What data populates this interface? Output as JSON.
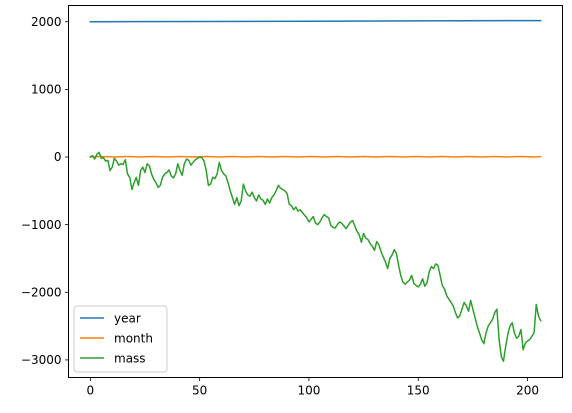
{
  "chart_data": {
    "type": "line",
    "title": "",
    "xlabel": "",
    "ylabel": "",
    "xlim": [
      -10,
      216
    ],
    "ylim": [
      -3260,
      2240
    ],
    "x_ticks": [
      0,
      50,
      100,
      150,
      200
    ],
    "y_ticks": [
      -3000,
      -2000,
      -1000,
      0,
      1000,
      2000
    ],
    "grid": false,
    "legend_position": "lower-left",
    "series": [
      {
        "name": "year",
        "color": "#1f77b4",
        "points": [
          [
            0,
            2000
          ],
          [
            50,
            2004
          ],
          [
            100,
            2008
          ],
          [
            150,
            2012
          ],
          [
            206,
            2017
          ]
        ]
      },
      {
        "name": "month",
        "color": "#ff7f0e",
        "points": [
          [
            0,
            1
          ],
          [
            5,
            8
          ],
          [
            11,
            1
          ],
          [
            17,
            8
          ],
          [
            23,
            1
          ],
          [
            29,
            8
          ],
          [
            35,
            1
          ],
          [
            41,
            8
          ],
          [
            47,
            1
          ],
          [
            53,
            8
          ],
          [
            59,
            1
          ],
          [
            65,
            8
          ],
          [
            71,
            1
          ],
          [
            77,
            8
          ],
          [
            83,
            1
          ],
          [
            89,
            8
          ],
          [
            95,
            1
          ],
          [
            101,
            8
          ],
          [
            107,
            1
          ],
          [
            113,
            8
          ],
          [
            119,
            1
          ],
          [
            125,
            8
          ],
          [
            131,
            1
          ],
          [
            137,
            8
          ],
          [
            143,
            1
          ],
          [
            149,
            8
          ],
          [
            155,
            1
          ],
          [
            161,
            8
          ],
          [
            167,
            1
          ],
          [
            173,
            8
          ],
          [
            179,
            1
          ],
          [
            185,
            8
          ],
          [
            191,
            1
          ],
          [
            197,
            8
          ],
          [
            203,
            1
          ],
          [
            206,
            5
          ]
        ]
      },
      {
        "name": "mass",
        "color": "#2ca02c",
        "points": [
          [
            0,
            0
          ],
          [
            1,
            20
          ],
          [
            2,
            -30
          ],
          [
            3,
            40
          ],
          [
            4,
            70
          ],
          [
            5,
            -20
          ],
          [
            6,
            -10
          ],
          [
            7,
            -60
          ],
          [
            8,
            -50
          ],
          [
            9,
            -200
          ],
          [
            10,
            -150
          ],
          [
            11,
            -20
          ],
          [
            12,
            -60
          ],
          [
            13,
            -120
          ],
          [
            14,
            -100
          ],
          [
            15,
            -110
          ],
          [
            16,
            -40
          ],
          [
            17,
            -250
          ],
          [
            18,
            -300
          ],
          [
            19,
            -480
          ],
          [
            20,
            -380
          ],
          [
            21,
            -300
          ],
          [
            22,
            -420
          ],
          [
            23,
            -200
          ],
          [
            24,
            -150
          ],
          [
            25,
            -230
          ],
          [
            26,
            -100
          ],
          [
            27,
            -130
          ],
          [
            28,
            -250
          ],
          [
            29,
            -330
          ],
          [
            30,
            -380
          ],
          [
            31,
            -450
          ],
          [
            32,
            -420
          ],
          [
            33,
            -300
          ],
          [
            34,
            -250
          ],
          [
            35,
            -230
          ],
          [
            36,
            -190
          ],
          [
            37,
            -280
          ],
          [
            38,
            -310
          ],
          [
            39,
            -250
          ],
          [
            40,
            -100
          ],
          [
            41,
            -200
          ],
          [
            42,
            -270
          ],
          [
            43,
            -100
          ],
          [
            44,
            -30
          ],
          [
            45,
            -50
          ],
          [
            46,
            -120
          ],
          [
            47,
            -80
          ],
          [
            48,
            -40
          ],
          [
            49,
            -20
          ],
          [
            50,
            0
          ],
          [
            51,
            -10
          ],
          [
            52,
            -60
          ],
          [
            53,
            -200
          ],
          [
            54,
            -420
          ],
          [
            55,
            -400
          ],
          [
            56,
            -300
          ],
          [
            57,
            -320
          ],
          [
            58,
            -250
          ],
          [
            59,
            -80
          ],
          [
            60,
            -200
          ],
          [
            61,
            -250
          ],
          [
            62,
            -280
          ],
          [
            63,
            -380
          ],
          [
            64,
            -500
          ],
          [
            65,
            -600
          ],
          [
            66,
            -700
          ],
          [
            67,
            -600
          ],
          [
            68,
            -720
          ],
          [
            69,
            -650
          ],
          [
            70,
            -400
          ],
          [
            71,
            -500
          ],
          [
            72,
            -560
          ],
          [
            73,
            -580
          ],
          [
            74,
            -520
          ],
          [
            75,
            -600
          ],
          [
            76,
            -650
          ],
          [
            77,
            -560
          ],
          [
            78,
            -620
          ],
          [
            79,
            -640
          ],
          [
            80,
            -700
          ],
          [
            81,
            -620
          ],
          [
            82,
            -680
          ],
          [
            83,
            -600
          ],
          [
            84,
            -560
          ],
          [
            85,
            -500
          ],
          [
            86,
            -420
          ],
          [
            87,
            -460
          ],
          [
            88,
            -480
          ],
          [
            89,
            -500
          ],
          [
            90,
            -540
          ],
          [
            91,
            -700
          ],
          [
            92,
            -720
          ],
          [
            93,
            -780
          ],
          [
            94,
            -740
          ],
          [
            95,
            -800
          ],
          [
            96,
            -780
          ],
          [
            97,
            -820
          ],
          [
            98,
            -860
          ],
          [
            99,
            -900
          ],
          [
            100,
            -960
          ],
          [
            101,
            -920
          ],
          [
            102,
            -880
          ],
          [
            103,
            -980
          ],
          [
            104,
            -1000
          ],
          [
            105,
            -960
          ],
          [
            106,
            -900
          ],
          [
            107,
            -850
          ],
          [
            108,
            -880
          ],
          [
            109,
            -900
          ],
          [
            110,
            -1010
          ],
          [
            111,
            -1040
          ],
          [
            112,
            -1050
          ],
          [
            113,
            -1000
          ],
          [
            114,
            -960
          ],
          [
            115,
            -980
          ],
          [
            116,
            -1020
          ],
          [
            117,
            -1060
          ],
          [
            118,
            -1010
          ],
          [
            119,
            -960
          ],
          [
            120,
            -940
          ],
          [
            121,
            -1020
          ],
          [
            122,
            -1100
          ],
          [
            123,
            -1150
          ],
          [
            124,
            -1260
          ],
          [
            125,
            -1130
          ],
          [
            126,
            -1200
          ],
          [
            127,
            -1220
          ],
          [
            128,
            -1280
          ],
          [
            129,
            -1320
          ],
          [
            130,
            -1380
          ],
          [
            131,
            -1250
          ],
          [
            132,
            -1300
          ],
          [
            133,
            -1400
          ],
          [
            134,
            -1480
          ],
          [
            135,
            -1550
          ],
          [
            136,
            -1650
          ],
          [
            137,
            -1500
          ],
          [
            138,
            -1450
          ],
          [
            139,
            -1370
          ],
          [
            140,
            -1420
          ],
          [
            141,
            -1600
          ],
          [
            142,
            -1750
          ],
          [
            143,
            -1850
          ],
          [
            144,
            -1880
          ],
          [
            145,
            -1850
          ],
          [
            146,
            -1820
          ],
          [
            147,
            -1750
          ],
          [
            148,
            -1870
          ],
          [
            149,
            -1900
          ],
          [
            150,
            -1920
          ],
          [
            151,
            -1880
          ],
          [
            152,
            -1800
          ],
          [
            153,
            -1910
          ],
          [
            154,
            -1860
          ],
          [
            155,
            -1700
          ],
          [
            156,
            -1620
          ],
          [
            157,
            -1650
          ],
          [
            158,
            -1580
          ],
          [
            159,
            -1600
          ],
          [
            160,
            -1750
          ],
          [
            161,
            -1900
          ],
          [
            162,
            -1950
          ],
          [
            163,
            -2050
          ],
          [
            164,
            -2100
          ],
          [
            165,
            -2150
          ],
          [
            166,
            -2200
          ],
          [
            167,
            -2300
          ],
          [
            168,
            -2380
          ],
          [
            169,
            -2350
          ],
          [
            170,
            -2250
          ],
          [
            171,
            -2150
          ],
          [
            172,
            -2200
          ],
          [
            173,
            -2280
          ],
          [
            174,
            -2120
          ],
          [
            175,
            -2250
          ],
          [
            176,
            -2380
          ],
          [
            177,
            -2500
          ],
          [
            178,
            -2600
          ],
          [
            179,
            -2700
          ],
          [
            180,
            -2760
          ],
          [
            181,
            -2600
          ],
          [
            182,
            -2500
          ],
          [
            183,
            -2450
          ],
          [
            184,
            -2400
          ],
          [
            185,
            -2300
          ],
          [
            186,
            -2250
          ],
          [
            187,
            -2700
          ],
          [
            188,
            -2950
          ],
          [
            189,
            -3020
          ],
          [
            190,
            -2800
          ],
          [
            191,
            -2620
          ],
          [
            192,
            -2500
          ],
          [
            193,
            -2450
          ],
          [
            194,
            -2600
          ],
          [
            195,
            -2680
          ],
          [
            196,
            -2650
          ],
          [
            197,
            -2550
          ],
          [
            198,
            -2850
          ],
          [
            199,
            -2750
          ],
          [
            200,
            -2720
          ],
          [
            201,
            -2700
          ],
          [
            202,
            -2650
          ],
          [
            203,
            -2600
          ],
          [
            204,
            -2180
          ],
          [
            205,
            -2350
          ],
          [
            206,
            -2420
          ]
        ]
      }
    ]
  }
}
